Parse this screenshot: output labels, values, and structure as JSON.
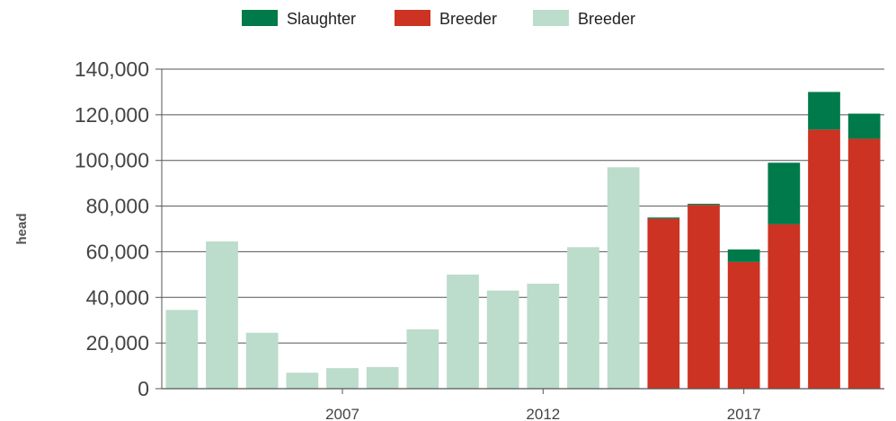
{
  "chart_data": {
    "type": "bar",
    "stacked": true,
    "title": "",
    "xlabel": "",
    "ylabel": "head",
    "ylim": [
      0,
      140000
    ],
    "yticks": [
      0,
      20000,
      40000,
      60000,
      80000,
      100000,
      120000,
      140000
    ],
    "ytick_labels": [
      "0",
      "20,000",
      "40,000",
      "60,000",
      "80,000",
      "100,000",
      "120,000",
      "140,000"
    ],
    "xtick_labels": [
      {
        "label": "2007",
        "year": 2007
      },
      {
        "label": "2012",
        "year": 2012
      },
      {
        "label": "2017",
        "year": 2017
      }
    ],
    "grid": "horizontal",
    "legend_position": "top-center",
    "categories": [
      2003,
      2004,
      2005,
      2006,
      2007,
      2008,
      2009,
      2010,
      2011,
      2012,
      2013,
      2014,
      2015,
      2016,
      2017,
      2018,
      2019,
      2020
    ],
    "series": [
      {
        "name": "Breeder",
        "color": "#bcdccc",
        "values": [
          34500,
          64500,
          24500,
          7000,
          9000,
          9500,
          26000,
          50000,
          43000,
          46000,
          62000,
          97000,
          0,
          0,
          0,
          0,
          0,
          0
        ]
      },
      {
        "name": "Breeder",
        "color": "#cc3322",
        "values": [
          0,
          0,
          0,
          0,
          0,
          0,
          0,
          0,
          0,
          0,
          0,
          0,
          74500,
          80500,
          55500,
          72000,
          113500,
          109500
        ]
      },
      {
        "name": "Slaughter",
        "color": "#007a4a",
        "values": [
          0,
          0,
          0,
          0,
          0,
          0,
          0,
          0,
          0,
          0,
          0,
          0,
          500,
          500,
          5500,
          27000,
          16500,
          11000
        ]
      }
    ],
    "legend": [
      {
        "label": "Slaughter",
        "color": "#007a4a"
      },
      {
        "label": "Breeder",
        "color": "#cc3322"
      },
      {
        "label": "Breeder",
        "color": "#bcdccc"
      }
    ]
  }
}
